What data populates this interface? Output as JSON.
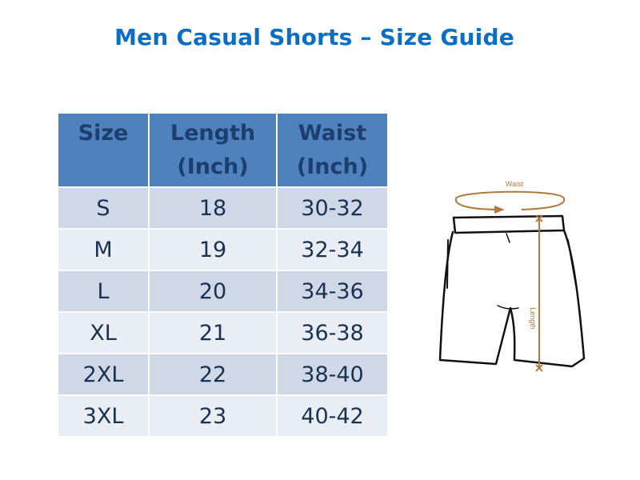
{
  "title": "Men Casual Shorts – Size Guide",
  "table": {
    "headers": [
      "Size",
      "Length\n(Inch)",
      "Waist\n(Inch)"
    ],
    "header_lines": [
      [
        "Size"
      ],
      [
        "Length",
        "(Inch)"
      ],
      [
        "Waist",
        "(Inch)"
      ]
    ],
    "rows": [
      [
        "S",
        "18",
        "30-32"
      ],
      [
        "M",
        "19",
        "32-34"
      ],
      [
        "L",
        "20",
        "34-36"
      ],
      [
        "XL",
        "21",
        "36-38"
      ],
      [
        "2XL",
        "22",
        "38-40"
      ],
      [
        "3XL",
        "23",
        "40-42"
      ]
    ]
  },
  "diagram": {
    "waist_label": "Waist",
    "length_label": "Length",
    "accent_color": "#b07a3c"
  },
  "colors": {
    "title": "#0a6fc2",
    "header_bg": "#4f81bd",
    "row_odd": "#d0d8e8",
    "row_even": "#e9edf4"
  }
}
